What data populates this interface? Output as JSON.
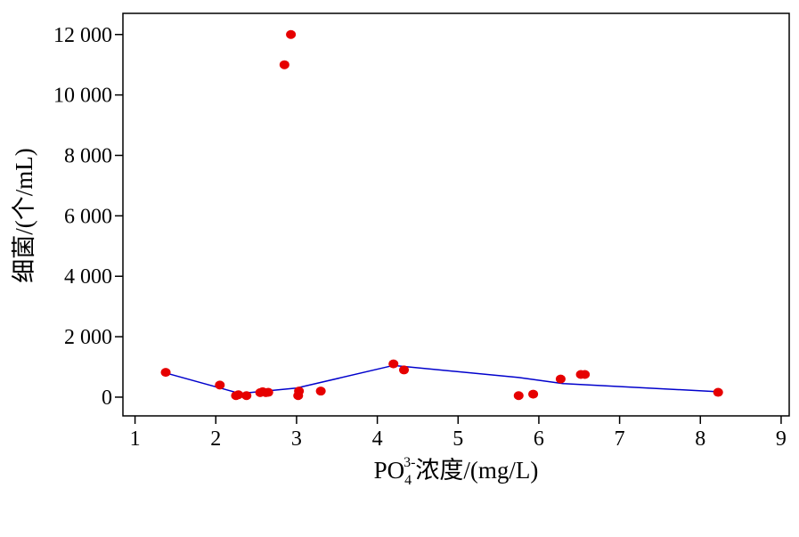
{
  "chart_data": {
    "type": "scatter",
    "xlabel": {
      "prefix": "PO",
      "subscript": "4",
      "superscript": "3-",
      "suffix": "浓度/(mg/L)"
    },
    "ylabel": "细菌/(个/mL)",
    "xlim": [
      0.85,
      9.1
    ],
    "ylim": [
      -620,
      12700
    ],
    "x_ticks": [
      1,
      2,
      3,
      4,
      5,
      6,
      7,
      8,
      9
    ],
    "x_tick_labels": [
      "1",
      "2",
      "3",
      "4",
      "5",
      "6",
      "7",
      "8",
      "9"
    ],
    "y_ticks": [
      0,
      2000,
      4000,
      6000,
      8000,
      10000,
      12000
    ],
    "y_tick_labels": [
      "0",
      "2 000",
      "4 000",
      "6 000",
      "8 000",
      "10 000",
      "12 000"
    ],
    "grid": false,
    "series": [
      {
        "type": "scatter",
        "color": "#e60000",
        "points": [
          [
            1.38,
            820
          ],
          [
            2.05,
            400
          ],
          [
            2.25,
            50
          ],
          [
            2.28,
            80
          ],
          [
            2.38,
            50
          ],
          [
            2.55,
            150
          ],
          [
            2.58,
            180
          ],
          [
            2.62,
            150
          ],
          [
            2.65,
            160
          ],
          [
            2.85,
            11000
          ],
          [
            2.93,
            12000
          ],
          [
            3.02,
            50
          ],
          [
            3.03,
            200
          ],
          [
            3.3,
            200
          ],
          [
            4.2,
            1100
          ],
          [
            4.33,
            900
          ],
          [
            5.75,
            50
          ],
          [
            5.93,
            100
          ],
          [
            6.27,
            600
          ],
          [
            6.52,
            750
          ],
          [
            6.57,
            750
          ],
          [
            8.22,
            160
          ]
        ]
      },
      {
        "type": "line",
        "color": "#0000cc",
        "points": [
          [
            1.38,
            800
          ],
          [
            2.3,
            120
          ],
          [
            3.0,
            300
          ],
          [
            4.2,
            1050
          ],
          [
            5.75,
            650
          ],
          [
            6.3,
            450
          ],
          [
            8.22,
            180
          ]
        ]
      }
    ]
  }
}
